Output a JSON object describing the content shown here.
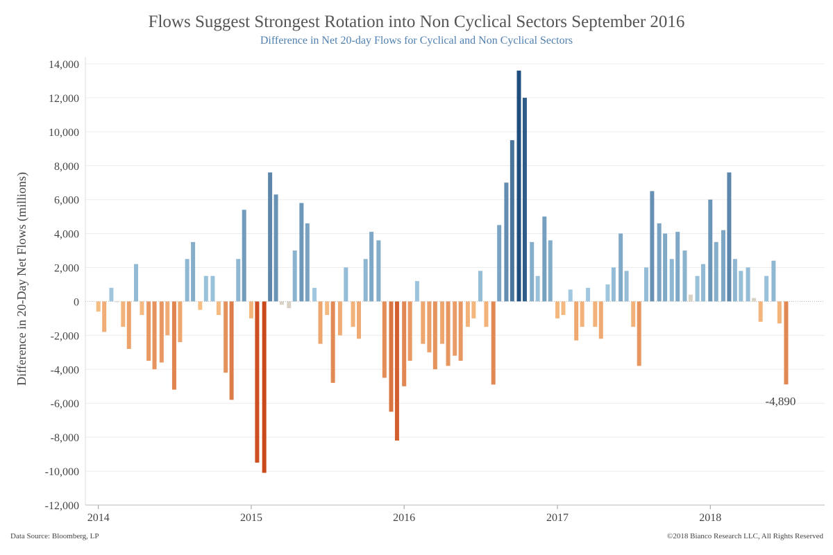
{
  "header": {
    "title": "Flows Suggest Strongest Rotation into Non Cyclical Sectors September 2016",
    "subtitle": "Difference in Net 20-day Flows for Cyclical and Non Cyclical Sectors"
  },
  "footer": {
    "source": "Data Source: Bloomberg, LP",
    "copyright": "©2018 Bianco Research LLC, All Rights Reserved"
  },
  "colors": {
    "positive_light": "#a9cfe5",
    "positive_dark": "#1f4e7e",
    "negative_light": "#f9c48a",
    "negative_dark": "#c9491a",
    "neutral": "#d8d2c4",
    "gridline": "#ececec",
    "zero_line": "#bbbbbb"
  },
  "chart_data": {
    "type": "bar",
    "title": "Flows Suggest Strongest Rotation into Non Cyclical Sectors September 2016",
    "subtitle": "Difference in Net 20-day Flows for Cyclical and Non Cyclical Sectors",
    "ylabel": "Difference in 20-Day Net Flows (millions)",
    "xlabel": "",
    "ylim": [
      -12000,
      14000
    ],
    "y_ticks": [
      14000,
      12000,
      10000,
      8000,
      6000,
      4000,
      2000,
      0,
      -2000,
      -4000,
      -6000,
      -8000,
      -10000,
      -12000
    ],
    "y_tick_labels": [
      "14,000",
      "12,000",
      "10,000",
      "8,000",
      "6,000",
      "4,000",
      "2,000",
      "0",
      "-2,000",
      "-4,000",
      "-6,000",
      "-8,000",
      "-10,000",
      "-12,000"
    ],
    "x_range": [
      "2013-12-01",
      "2018-10-01"
    ],
    "x_ticks": [
      "2014-01-01",
      "2015-01-01",
      "2016-01-01",
      "2017-01-01",
      "2018-01-01"
    ],
    "x_tick_labels": [
      "2014",
      "2015",
      "2016",
      "2017",
      "2018"
    ],
    "grid": true,
    "legend": "none",
    "annotations": [
      {
        "text": "-4,890",
        "x": "2018-07-01",
        "y": -4890
      }
    ],
    "x": [
      "2014-01-01",
      "2014-01-15",
      "2014-02-01",
      "2014-02-15",
      "2014-03-01",
      "2014-03-15",
      "2014-04-01",
      "2014-04-15",
      "2014-05-01",
      "2014-05-15",
      "2014-06-01",
      "2014-06-15",
      "2014-07-01",
      "2014-07-15",
      "2014-08-01",
      "2014-08-15",
      "2014-09-01",
      "2014-09-15",
      "2014-10-01",
      "2014-10-15",
      "2014-11-01",
      "2014-11-15",
      "2014-12-01",
      "2014-12-15",
      "2015-01-01",
      "2015-01-15",
      "2015-02-01",
      "2015-02-15",
      "2015-03-01",
      "2015-03-15",
      "2015-04-01",
      "2015-04-15",
      "2015-05-01",
      "2015-05-15",
      "2015-06-01",
      "2015-06-15",
      "2015-07-01",
      "2015-07-15",
      "2015-08-01",
      "2015-08-15",
      "2015-09-01",
      "2015-09-15",
      "2015-10-01",
      "2015-10-15",
      "2015-11-01",
      "2015-11-15",
      "2015-12-01",
      "2015-12-15",
      "2016-01-01",
      "2016-01-15",
      "2016-02-01",
      "2016-02-15",
      "2016-03-01",
      "2016-03-15",
      "2016-04-01",
      "2016-04-15",
      "2016-05-01",
      "2016-05-15",
      "2016-06-01",
      "2016-06-15",
      "2016-07-01",
      "2016-07-15",
      "2016-08-01",
      "2016-08-15",
      "2016-09-01",
      "2016-09-15",
      "2016-10-01",
      "2016-10-15",
      "2016-11-01",
      "2016-11-15",
      "2016-12-01",
      "2016-12-15",
      "2017-01-01",
      "2017-01-15",
      "2017-02-01",
      "2017-02-15",
      "2017-03-01",
      "2017-03-15",
      "2017-04-01",
      "2017-04-15",
      "2017-05-01",
      "2017-05-15",
      "2017-06-01",
      "2017-06-15",
      "2017-07-01",
      "2017-07-15",
      "2017-08-01",
      "2017-08-15",
      "2017-09-01",
      "2017-09-15",
      "2017-10-01",
      "2017-10-15",
      "2017-11-01",
      "2017-11-15",
      "2017-12-01",
      "2017-12-15",
      "2018-01-01",
      "2018-01-15",
      "2018-02-01",
      "2018-02-15",
      "2018-03-01",
      "2018-03-15",
      "2018-04-01",
      "2018-04-15",
      "2018-05-01",
      "2018-05-15",
      "2018-06-01",
      "2018-06-15",
      "2018-07-01"
    ],
    "values": [
      -600,
      -1800,
      800,
      0,
      -1500,
      -2800,
      2200,
      -800,
      -3500,
      -4000,
      -3600,
      -2000,
      -5200,
      -2400,
      2500,
      3500,
      -500,
      1500,
      1500,
      -800,
      -4200,
      -5800,
      2500,
      5400,
      -1000,
      -9500,
      -10100,
      7600,
      6300,
      -200,
      -400,
      3000,
      5800,
      4600,
      800,
      -2500,
      -800,
      -4800,
      -2000,
      2000,
      -1500,
      -2200,
      2500,
      4100,
      3600,
      -4500,
      -6500,
      -8200,
      -5000,
      -3500,
      1200,
      -2500,
      -3000,
      -4000,
      -2500,
      -3800,
      -3200,
      -3500,
      -1500,
      -1000,
      1800,
      -1500,
      -4900,
      4500,
      7000,
      9500,
      13600,
      12000,
      3500,
      1500,
      5000,
      3600,
      -1000,
      -800,
      700,
      -2300,
      -1500,
      800,
      -1500,
      -2200,
      1000,
      2000,
      4000,
      1800,
      -1500,
      -3800,
      2000,
      6500,
      4600,
      4000,
      2500,
      4100,
      3000,
      400,
      1500,
      2200,
      6000,
      3500,
      4200,
      7600,
      2500,
      1800,
      2000,
      200,
      -1200,
      1500,
      2400,
      -1300,
      -4890
    ]
  }
}
